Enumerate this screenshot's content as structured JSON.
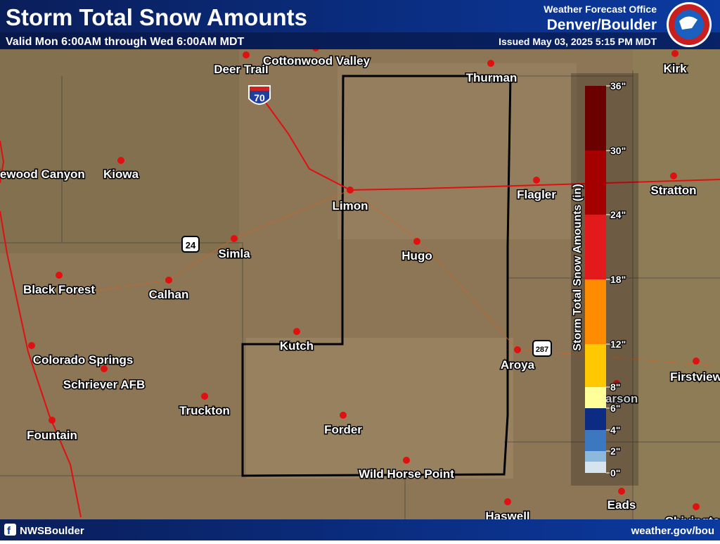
{
  "header": {
    "title": "Storm Total Snow Amounts",
    "subtitle": "Valid Mon 6:00AM through Wed 6:00AM MDT",
    "office": "Weather Forecast Office",
    "office_name": "Denver/Boulder",
    "issued": "Issued May 03, 2025 5:15 PM MDT"
  },
  "towns": [
    "Deer Trail",
    "Cottonwood Valley",
    "Thurman",
    "Kirk",
    "lewood Canyon",
    "Kiowa",
    "Limon",
    "Flagler",
    "Stratton",
    "Simla",
    "Hugo",
    "Black Forest",
    "Calhan",
    "Kutch",
    "Aroya",
    "Firstview",
    "Colorado Springs",
    "Schriever AFB",
    "Truckton",
    "Carson",
    "Fountain",
    "Forder",
    "Wild Horse Point",
    "Eads",
    "Haswell",
    "Chivington"
  ],
  "highways": [
    "70",
    "24",
    "287"
  ],
  "legend": {
    "title": "Storm Total Snow Amounts (in)",
    "ticks": [
      "36\"",
      "30\"",
      "24\"",
      "18\"",
      "12\"",
      "8\"",
      "6\"",
      "4\"",
      "2\"",
      "0\""
    ],
    "colors": [
      "#6b0000",
      "#a50000",
      "#e31a1c",
      "#ff8c00",
      "#ffc800",
      "#ffff99",
      "#0c2c84",
      "#3c78c0",
      "#8cb8dc"
    ]
  },
  "footer": {
    "social": "NWSBoulder",
    "url": "weather.gov/bou"
  }
}
